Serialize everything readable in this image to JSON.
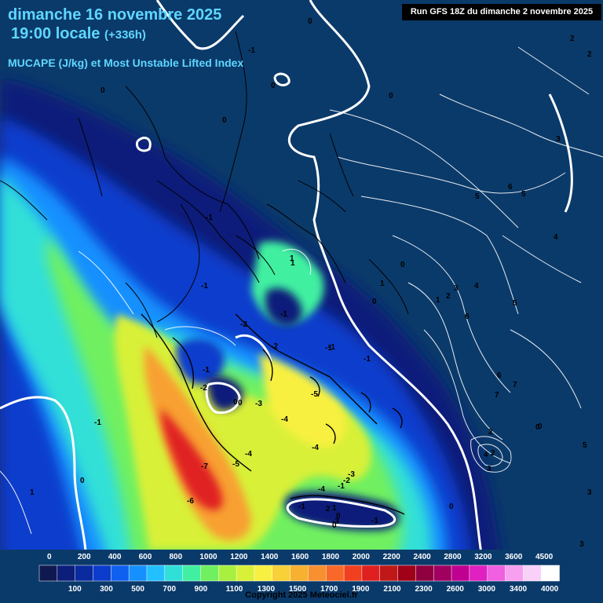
{
  "header": {
    "date": "dimanche 16 novembre 2025",
    "time": "19:00 locale",
    "lead": "(+336h)",
    "parameter": "MUCAPE (J/kg) et Most Unstable Lifted Index"
  },
  "run_info": "Run GFS 18Z du dimanche 2 novembre 2025",
  "copyright": "Copyright 2025 Meteociel.fr",
  "colorbar": {
    "top_labels": [
      "0",
      "200",
      "400",
      "600",
      "800",
      "1000",
      "1200",
      "1400",
      "1600",
      "1800",
      "2000",
      "2200",
      "2400",
      "2800",
      "3200",
      "3600",
      "4500"
    ],
    "bottom_labels": [
      "100",
      "300",
      "500",
      "700",
      "900",
      "1100",
      "1300",
      "1500",
      "1700",
      "1900",
      "2100",
      "2300",
      "2600",
      "3000",
      "3400",
      "4000"
    ],
    "colors": [
      "#101850",
      "#0b1e7a",
      "#0a2aa0",
      "#0b3ccc",
      "#1060f0",
      "#1690ff",
      "#22c0ff",
      "#30e0d8",
      "#40f0a0",
      "#70f060",
      "#a8f040",
      "#d8f038",
      "#f8f040",
      "#f8d038",
      "#f8b030",
      "#f89030",
      "#f86828",
      "#f04020",
      "#e02020",
      "#c01818",
      "#a00018",
      "#900040",
      "#a00060",
      "#c00090",
      "#e020c0",
      "#f060e0",
      "#f8a0f0",
      "#f8d0f8",
      "#ffffff"
    ]
  },
  "lifted_index_labels": [
    {
      "t": "0"
    },
    {
      "t": "0"
    },
    {
      "t": "0"
    },
    {
      "t": "0"
    },
    {
      "t": "0"
    },
    {
      "t": "-1"
    },
    {
      "t": "-1"
    },
    {
      "t": "-1"
    },
    {
      "t": "-1"
    },
    {
      "t": "-2"
    },
    {
      "t": "-2"
    },
    {
      "t": "-1"
    },
    {
      "t": "-1"
    },
    {
      "t": "-2"
    },
    {
      "t": "-3"
    },
    {
      "t": "0"
    },
    {
      "t": "-5"
    },
    {
      "t": "-4"
    },
    {
      "t": "-4"
    },
    {
      "t": "-4"
    },
    {
      "t": "-5"
    },
    {
      "t": "-7"
    },
    {
      "t": "-6"
    },
    {
      "t": "-4"
    },
    {
      "t": "-3"
    },
    {
      "t": "-2"
    },
    {
      "t": "-1"
    },
    {
      "t": "-1"
    },
    {
      "t": "-3"
    },
    {
      "t": "-1"
    },
    {
      "t": "-5"
    },
    {
      "t": "-5"
    },
    {
      "t": "-1"
    },
    {
      "t": "-1"
    },
    {
      "t": "0"
    },
    {
      "t": "1"
    },
    {
      "t": "2"
    },
    {
      "t": "3"
    },
    {
      "t": "4"
    },
    {
      "t": "5"
    },
    {
      "t": "6"
    },
    {
      "t": "5"
    },
    {
      "t": "4"
    },
    {
      "t": "5"
    },
    {
      "t": "6"
    },
    {
      "t": "7"
    },
    {
      "t": "7"
    },
    {
      "t": "6"
    },
    {
      "t": "3"
    },
    {
      "t": "2"
    },
    {
      "t": "2"
    },
    {
      "t": "4"
    },
    {
      "t": "3"
    },
    {
      "t": "0"
    },
    {
      "t": "0"
    },
    {
      "t": "0"
    },
    {
      "t": "1"
    },
    {
      "t": "1"
    },
    {
      "t": "0"
    },
    {
      "t": "1"
    },
    {
      "t": "0"
    },
    {
      "t": "3"
    },
    {
      "t": "3"
    },
    {
      "t": "5"
    },
    {
      "t": "-1"
    },
    {
      "t": "0"
    },
    {
      "t": "0"
    },
    {
      "t": "0"
    },
    {
      "t": "1"
    },
    {
      "t": "-1"
    },
    {
      "t": "0"
    },
    {
      "t": "2"
    },
    {
      "t": "2"
    },
    {
      "t": "2"
    },
    {
      "t": "1"
    }
  ]
}
